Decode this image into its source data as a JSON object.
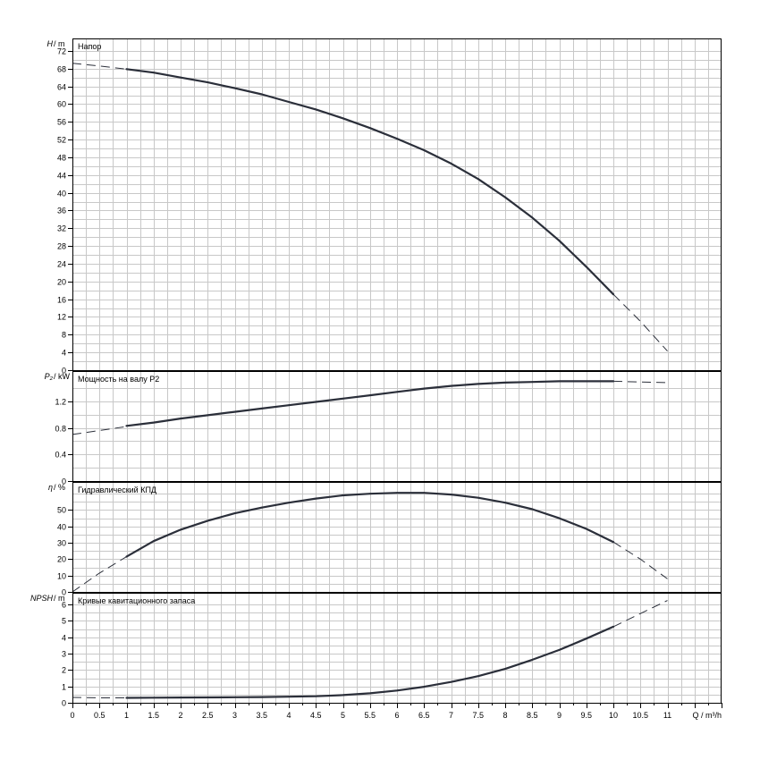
{
  "chart_data": [
    {
      "type": "line",
      "title": "Напор",
      "ylabel_sym": "H",
      "ylabel_unit": "/ m",
      "ylim": [
        0,
        74
      ],
      "yticks": [
        0,
        4,
        8,
        12,
        16,
        20,
        24,
        28,
        32,
        36,
        40,
        44,
        48,
        52,
        56,
        60,
        64,
        68,
        72
      ],
      "yminor": 2,
      "series": [
        {
          "style": "dashed",
          "x": [
            0,
            0.5,
            1
          ],
          "y": [
            69.2,
            68.6,
            67.9
          ]
        },
        {
          "style": "solid",
          "x": [
            1,
            1.5,
            2,
            2.5,
            3,
            3.5,
            4,
            4.5,
            5,
            5.5,
            6,
            6.5,
            7,
            7.5,
            8,
            8.5,
            9,
            9.5,
            10
          ],
          "y": [
            67.9,
            67.1,
            66.0,
            64.9,
            63.6,
            62.2,
            60.5,
            58.8,
            56.8,
            54.6,
            52.2,
            49.6,
            46.6,
            43.1,
            39.0,
            34.4,
            29.2,
            23.3,
            17.1
          ]
        },
        {
          "style": "dashed",
          "x": [
            10,
            10.5,
            11
          ],
          "y": [
            17.1,
            11.0,
            4.3
          ]
        }
      ]
    },
    {
      "type": "line",
      "title": "Мощность на валу P2",
      "ylabel_sym": "P₂",
      "ylabel_unit": "/ kW",
      "ylim": [
        0,
        1.6
      ],
      "yticks": [
        0,
        0.4,
        0.8,
        1.2
      ],
      "yminor": 0.2,
      "series": [
        {
          "style": "dashed",
          "x": [
            0,
            0.5,
            1
          ],
          "y": [
            0.7,
            0.76,
            0.82
          ]
        },
        {
          "style": "solid",
          "x": [
            1,
            1.5,
            2,
            2.5,
            3,
            3.5,
            4,
            4.5,
            5,
            5.5,
            6,
            6.5,
            7,
            7.5,
            8,
            8.5,
            9,
            9.5,
            10
          ],
          "y": [
            0.83,
            0.88,
            0.94,
            0.99,
            1.04,
            1.09,
            1.14,
            1.19,
            1.24,
            1.29,
            1.34,
            1.39,
            1.43,
            1.46,
            1.48,
            1.49,
            1.5,
            1.5,
            1.5
          ]
        },
        {
          "style": "dashed",
          "x": [
            10,
            10.5,
            11
          ],
          "y": [
            1.5,
            1.49,
            1.48
          ]
        }
      ]
    },
    {
      "type": "line",
      "title": "Гидравлический КПД",
      "ylabel_sym": "η",
      "ylabel_unit": "/ %",
      "ylim": [
        0,
        65
      ],
      "yticks": [
        0,
        10,
        20,
        30,
        40,
        50
      ],
      "yminor": 5,
      "series": [
        {
          "style": "dashed",
          "x": [
            0,
            0.5,
            1
          ],
          "y": [
            0,
            11.5,
            21.5
          ]
        },
        {
          "style": "solid",
          "x": [
            1,
            1.5,
            2,
            2.5,
            3,
            3.5,
            4,
            4.5,
            5,
            5.5,
            6,
            6.5,
            7,
            7.5,
            8,
            8.5,
            9,
            9.5,
            10
          ],
          "y": [
            21.5,
            31.0,
            38.0,
            43.5,
            48.0,
            51.5,
            54.5,
            57.0,
            59.0,
            60.0,
            60.5,
            60.5,
            59.5,
            57.5,
            54.5,
            50.5,
            45.0,
            38.5,
            30.5
          ]
        },
        {
          "style": "dashed",
          "x": [
            10,
            10.5,
            11
          ],
          "y": [
            30.5,
            20.0,
            8.0
          ]
        }
      ]
    },
    {
      "type": "line",
      "title": "Кривые кавитационного запаса",
      "ylabel_sym": "NPSH",
      "ylabel_unit": "/ m",
      "ylim": [
        0,
        6.5
      ],
      "yticks": [
        0,
        1,
        2,
        3,
        4,
        5,
        6
      ],
      "yminor": 0.5,
      "series": [
        {
          "style": "dashed",
          "x": [
            0,
            0.5,
            1
          ],
          "y": [
            0.33,
            0.3,
            0.3
          ]
        },
        {
          "style": "solid",
          "x": [
            1,
            1.5,
            2,
            2.5,
            3,
            3.5,
            4,
            4.5,
            5,
            5.5,
            6,
            6.5,
            7,
            7.5,
            8,
            8.5,
            9,
            9.5,
            10
          ],
          "y": [
            0.3,
            0.31,
            0.32,
            0.33,
            0.34,
            0.35,
            0.37,
            0.4,
            0.47,
            0.58,
            0.75,
            0.98,
            1.27,
            1.63,
            2.07,
            2.63,
            3.23,
            3.92,
            4.65
          ]
        },
        {
          "style": "dashed",
          "x": [
            10,
            10.5,
            11
          ],
          "y": [
            4.65,
            5.45,
            6.25
          ]
        }
      ]
    }
  ],
  "x_axis": {
    "label": "Q / m³/h",
    "xlim": [
      0,
      12
    ],
    "ticks": [
      0,
      0.5,
      1,
      1.5,
      2,
      2.5,
      3,
      3.5,
      4,
      4.5,
      5,
      5.5,
      6,
      6.5,
      7,
      7.5,
      8,
      8.5,
      9,
      9.5,
      10,
      10.5,
      11
    ],
    "tick_labels": [
      "0",
      "0.5",
      "1",
      "1.5",
      "2",
      "2.5",
      "3",
      "3.5",
      "4",
      "4.5",
      "5",
      "5.5",
      "6",
      "6.5",
      "7",
      "7.5",
      "8",
      "8.5",
      "9",
      "9.5",
      "10",
      "10.5",
      "11"
    ],
    "minor": 0.25,
    "grid": true
  }
}
